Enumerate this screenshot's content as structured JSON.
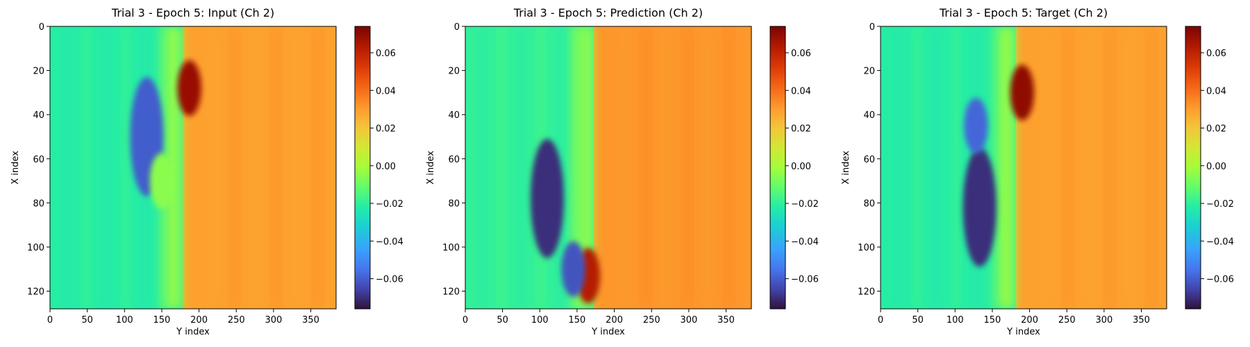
{
  "figure": {
    "colormap": "turbo",
    "colorbar_ticks": [
      -0.06,
      -0.04,
      -0.02,
      0.0,
      0.02,
      0.04,
      0.06
    ],
    "colorbar_tick_labels": [
      "−0.06",
      "−0.04",
      "−0.02",
      "0.00",
      "0.02",
      "0.04",
      "0.06"
    ],
    "colorbar_range": [
      -0.076,
      0.074
    ]
  },
  "chart_data": [
    {
      "type": "heatmap",
      "title": "Trial 3 - Epoch 5: Input (Ch 2)",
      "xlabel": "Y index",
      "ylabel": "X index",
      "xlim": [
        0,
        384
      ],
      "ylim": [
        128,
        0
      ],
      "xticks": [
        0,
        50,
        100,
        150,
        200,
        250,
        300,
        350
      ],
      "yticks": [
        0,
        20,
        40,
        60,
        80,
        100,
        120
      ],
      "vmin": -0.076,
      "vmax": 0.074,
      "field": {
        "left_value": -0.022,
        "right_value": 0.03,
        "front_y": 178,
        "front_features": [
          {
            "y": 130,
            "x": 50,
            "value": -0.06
          },
          {
            "y": 187,
            "x": 28,
            "value": 0.068
          },
          {
            "y": 150,
            "x": 70,
            "value": -0.005
          }
        ]
      }
    },
    {
      "type": "heatmap",
      "title": "Trial 3 - Epoch 5: Prediction (Ch 2)",
      "xlabel": "Y index",
      "ylabel": "X index",
      "xlim": [
        0,
        384
      ],
      "ylim": [
        128,
        0
      ],
      "xticks": [
        0,
        50,
        100,
        150,
        200,
        250,
        300,
        350
      ],
      "yticks": [
        0,
        20,
        40,
        60,
        80,
        100,
        120
      ],
      "vmin": -0.076,
      "vmax": 0.074,
      "field": {
        "left_value": -0.02,
        "right_value": 0.032,
        "front_y": 172,
        "front_features": [
          {
            "y": 110,
            "x": 78,
            "value": -0.07
          },
          {
            "y": 165,
            "x": 113,
            "value": 0.062
          },
          {
            "y": 145,
            "x": 110,
            "value": -0.062
          }
        ]
      }
    },
    {
      "type": "heatmap",
      "title": "Trial 3 - Epoch 5: Target (Ch 2)",
      "xlabel": "Y index",
      "ylabel": "X index",
      "xlim": [
        0,
        384
      ],
      "ylim": [
        128,
        0
      ],
      "xticks": [
        0,
        50,
        100,
        150,
        200,
        250,
        300,
        350
      ],
      "yticks": [
        0,
        20,
        40,
        60,
        80,
        100,
        120
      ],
      "vmin": -0.076,
      "vmax": 0.074,
      "field": {
        "left_value": -0.022,
        "right_value": 0.03,
        "front_y": 182,
        "front_features": [
          {
            "y": 133,
            "x": 82,
            "value": -0.07
          },
          {
            "y": 190,
            "x": 30,
            "value": 0.07
          },
          {
            "y": 128,
            "x": 45,
            "value": -0.058
          }
        ]
      }
    }
  ]
}
